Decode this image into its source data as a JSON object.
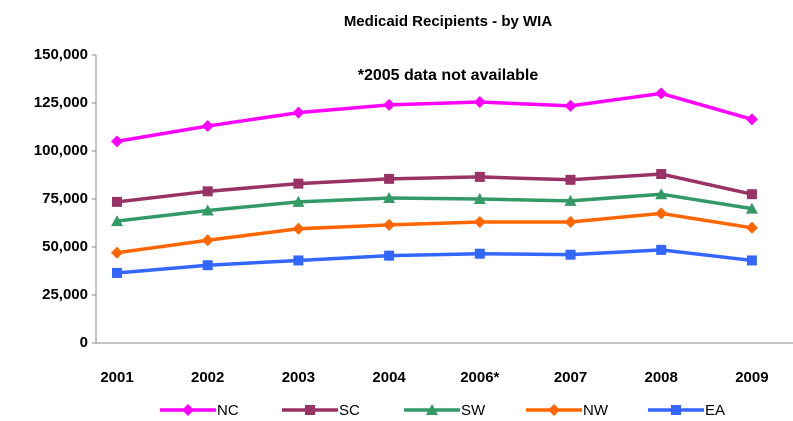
{
  "chart_data": {
    "type": "line",
    "title": "Medicaid Recipients - by WIA",
    "annotation": "*2005 data not available",
    "categories": [
      "2001",
      "2002",
      "2003",
      "2004",
      "2006*",
      "2007",
      "2008",
      "2009"
    ],
    "series": [
      {
        "name": "NC",
        "color": "#ff00ff",
        "marker": "diamond",
        "values": [
          105000,
          113000,
          120000,
          124000,
          125500,
          123500,
          130000,
          116500
        ]
      },
      {
        "name": "SC",
        "color": "#993366",
        "marker": "square",
        "values": [
          73500,
          79000,
          83000,
          85500,
          86500,
          85000,
          88000,
          77500
        ]
      },
      {
        "name": "SW",
        "color": "#339966",
        "marker": "triangle",
        "values": [
          63500,
          69000,
          73500,
          75500,
          75000,
          74000,
          77500,
          70000
        ]
      },
      {
        "name": "NW",
        "color": "#ff6600",
        "marker": "diamond",
        "values": [
          47000,
          53500,
          59500,
          61500,
          63000,
          63000,
          67500,
          60000
        ]
      },
      {
        "name": "EA",
        "color": "#3366ff",
        "marker": "square",
        "values": [
          36500,
          40500,
          43000,
          45500,
          46500,
          46000,
          48500,
          43000
        ]
      }
    ],
    "ylim": [
      0,
      150000
    ],
    "yticks": [
      {
        "value": 0,
        "label": "0"
      },
      {
        "value": 25000,
        "label": "25,000"
      },
      {
        "value": 50000,
        "label": "50,000"
      },
      {
        "value": 75000,
        "label": "75,000"
      },
      {
        "value": 100000,
        "label": "100,000"
      },
      {
        "value": 125000,
        "label": "125,000"
      },
      {
        "value": 150000,
        "label": "150,000"
      }
    ],
    "legend": "bottom"
  }
}
